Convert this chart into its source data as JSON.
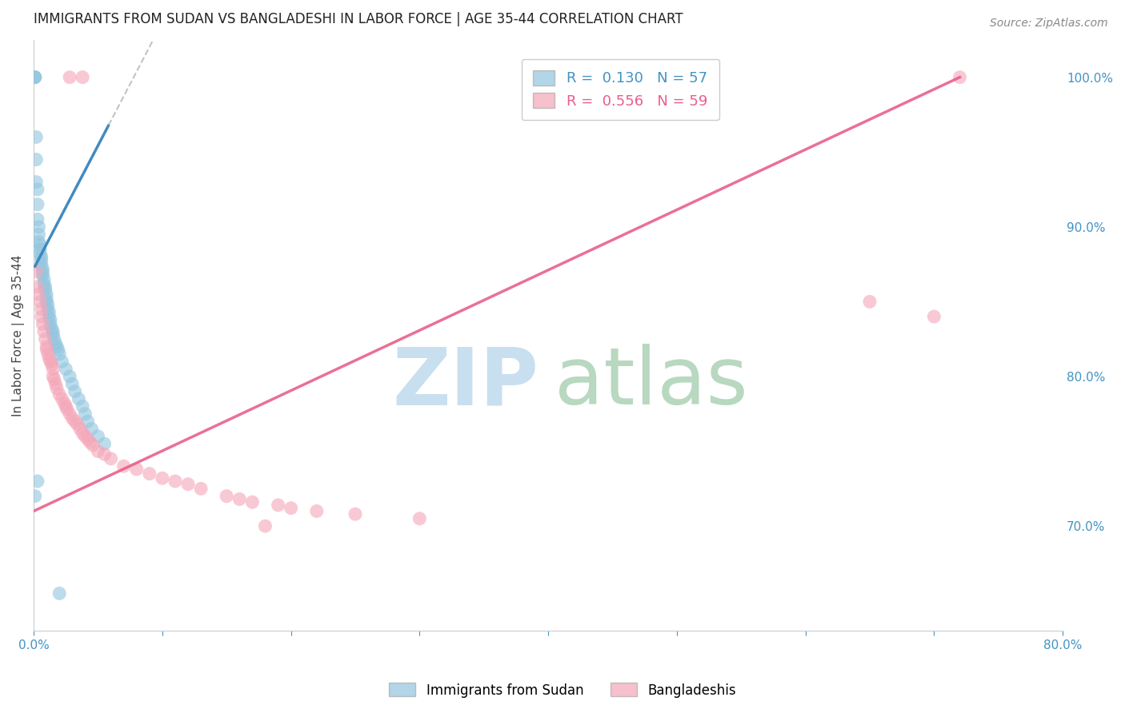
{
  "title": "IMMIGRANTS FROM SUDAN VS BANGLADESHI IN LABOR FORCE | AGE 35-44 CORRELATION CHART",
  "source": "Source: ZipAtlas.com",
  "ylabel": "In Labor Force | Age 35-44",
  "xmin": 0.0,
  "xmax": 0.8,
  "ymin": 0.63,
  "ymax": 1.025,
  "right_yticks": [
    0.7,
    0.8,
    0.9,
    1.0
  ],
  "right_yticklabels": [
    "70.0%",
    "80.0%",
    "90.0%",
    "100.0%"
  ],
  "legend_R1": "0.130",
  "legend_N1": "57",
  "legend_R2": "0.556",
  "legend_N2": "59",
  "color_sudan": "#92c5de",
  "color_bangladesh": "#f4a6b8",
  "color_sudan_line": "#3182bd",
  "color_bangladesh_line": "#e8608a",
  "color_axis_text": "#4393c3",
  "watermark_zip": "#c8dff0",
  "watermark_atlas": "#b8d8c0",
  "sudan_x": [
    0.001,
    0.001,
    0.001,
    0.002,
    0.002,
    0.002,
    0.003,
    0.003,
    0.003,
    0.004,
    0.004,
    0.004,
    0.005,
    0.005,
    0.005,
    0.006,
    0.006,
    0.006,
    0.007,
    0.007,
    0.007,
    0.008,
    0.008,
    0.009,
    0.009,
    0.01,
    0.01,
    0.01,
    0.011,
    0.011,
    0.012,
    0.012,
    0.013,
    0.013,
    0.014,
    0.015,
    0.015,
    0.016,
    0.017,
    0.018,
    0.019,
    0.02,
    0.022,
    0.025,
    0.028,
    0.03,
    0.032,
    0.035,
    0.038,
    0.04,
    0.042,
    0.045,
    0.05,
    0.055,
    0.001,
    0.003,
    0.02
  ],
  "sudan_y": [
    1.0,
    1.0,
    1.0,
    0.96,
    0.945,
    0.93,
    0.925,
    0.915,
    0.905,
    0.9,
    0.895,
    0.89,
    0.888,
    0.885,
    0.882,
    0.88,
    0.878,
    0.875,
    0.872,
    0.87,
    0.868,
    0.865,
    0.862,
    0.86,
    0.858,
    0.855,
    0.852,
    0.85,
    0.848,
    0.845,
    0.843,
    0.84,
    0.838,
    0.835,
    0.832,
    0.83,
    0.828,
    0.825,
    0.822,
    0.82,
    0.818,
    0.815,
    0.81,
    0.805,
    0.8,
    0.795,
    0.79,
    0.785,
    0.78,
    0.775,
    0.77,
    0.765,
    0.76,
    0.755,
    0.72,
    0.73,
    0.655
  ],
  "bangladesh_x": [
    0.002,
    0.003,
    0.004,
    0.005,
    0.006,
    0.006,
    0.007,
    0.008,
    0.009,
    0.01,
    0.01,
    0.011,
    0.012,
    0.013,
    0.014,
    0.015,
    0.015,
    0.016,
    0.017,
    0.018,
    0.02,
    0.022,
    0.024,
    0.025,
    0.026,
    0.028,
    0.03,
    0.032,
    0.034,
    0.036,
    0.038,
    0.04,
    0.042,
    0.044,
    0.046,
    0.05,
    0.055,
    0.06,
    0.07,
    0.08,
    0.09,
    0.1,
    0.11,
    0.12,
    0.13,
    0.15,
    0.16,
    0.17,
    0.19,
    0.2,
    0.22,
    0.25,
    0.3,
    0.028,
    0.038,
    0.72,
    0.65,
    0.7,
    0.18
  ],
  "bangladesh_y": [
    0.87,
    0.86,
    0.855,
    0.85,
    0.845,
    0.84,
    0.835,
    0.83,
    0.825,
    0.82,
    0.818,
    0.815,
    0.812,
    0.81,
    0.808,
    0.805,
    0.8,
    0.798,
    0.795,
    0.792,
    0.788,
    0.785,
    0.782,
    0.78,
    0.778,
    0.775,
    0.772,
    0.77,
    0.768,
    0.765,
    0.762,
    0.76,
    0.758,
    0.756,
    0.754,
    0.75,
    0.748,
    0.745,
    0.74,
    0.738,
    0.735,
    0.732,
    0.73,
    0.728,
    0.725,
    0.72,
    0.718,
    0.716,
    0.714,
    0.712,
    0.71,
    0.708,
    0.705,
    1.0,
    1.0,
    1.0,
    0.85,
    0.84,
    0.7
  ],
  "sudan_line_x": [
    0.001,
    0.055
  ],
  "sudan_line_y": [
    0.88,
    0.92
  ],
  "bangladesh_line_x": [
    0.0,
    0.72
  ],
  "bangladesh_line_y": [
    0.71,
    1.0
  ]
}
